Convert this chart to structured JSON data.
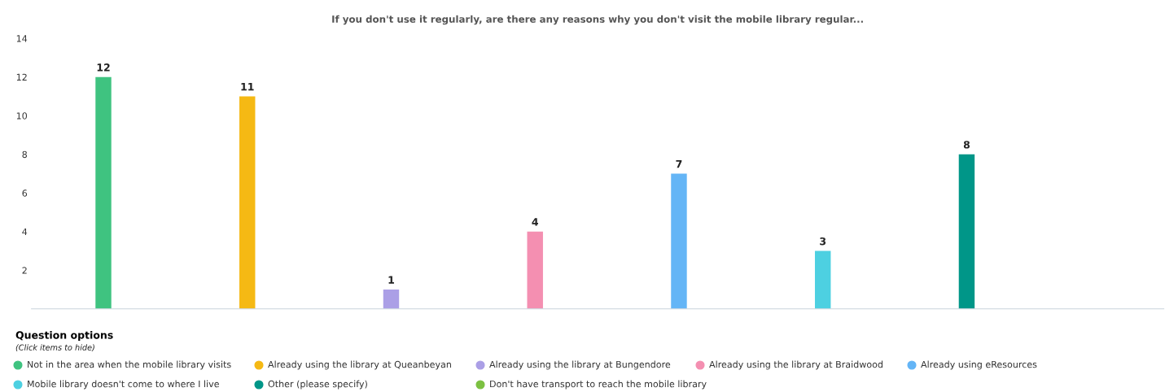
{
  "chart_data": {
    "type": "bar",
    "title": "If you don't use it regularly, are there any reasons why you don't visit the mobile library regular...",
    "categories": [
      null,
      null,
      null,
      null,
      null,
      null,
      null,
      null
    ],
    "series": [
      {
        "name": "Not in the area when the mobile library visits",
        "color": "#3fc380",
        "values": [
          12,
          null,
          null,
          null,
          null,
          null,
          null,
          null
        ]
      },
      {
        "name": "Already using the library at Queanbeyan",
        "color": "#f5b914",
        "values": [
          null,
          11,
          null,
          null,
          null,
          null,
          null,
          null
        ]
      },
      {
        "name": "Already using the library at Bungendore",
        "color": "#ab9fe6",
        "values": [
          null,
          null,
          1,
          null,
          null,
          null,
          null,
          null
        ]
      },
      {
        "name": "Already using the library at Braidwood",
        "color": "#f48fb1",
        "values": [
          null,
          null,
          null,
          4,
          null,
          null,
          null,
          null
        ]
      },
      {
        "name": "Already using eResources",
        "color": "#64b5f6",
        "values": [
          null,
          null,
          null,
          null,
          7,
          null,
          null,
          null
        ]
      },
      {
        "name": "Mobile library doesn't come to where I live",
        "color": "#4dd0e1",
        "values": [
          null,
          null,
          null,
          null,
          null,
          3,
          null,
          null
        ]
      },
      {
        "name": "Other (please specify)",
        "color": "#009688",
        "values": [
          null,
          null,
          null,
          null,
          null,
          null,
          8,
          null
        ]
      },
      {
        "name": "Don't have transport to reach the mobile library",
        "color": "#7cc142",
        "values": [
          null,
          null,
          null,
          null,
          null,
          null,
          null,
          null
        ]
      }
    ],
    "ylim": [
      0,
      14
    ],
    "yticks": [
      2,
      4,
      6,
      8,
      10,
      12,
      14
    ],
    "data_labels": true,
    "grid": false,
    "legend": "bottom",
    "legend_title": "Question options",
    "annotations": [
      "(Click items to hide)"
    ]
  }
}
